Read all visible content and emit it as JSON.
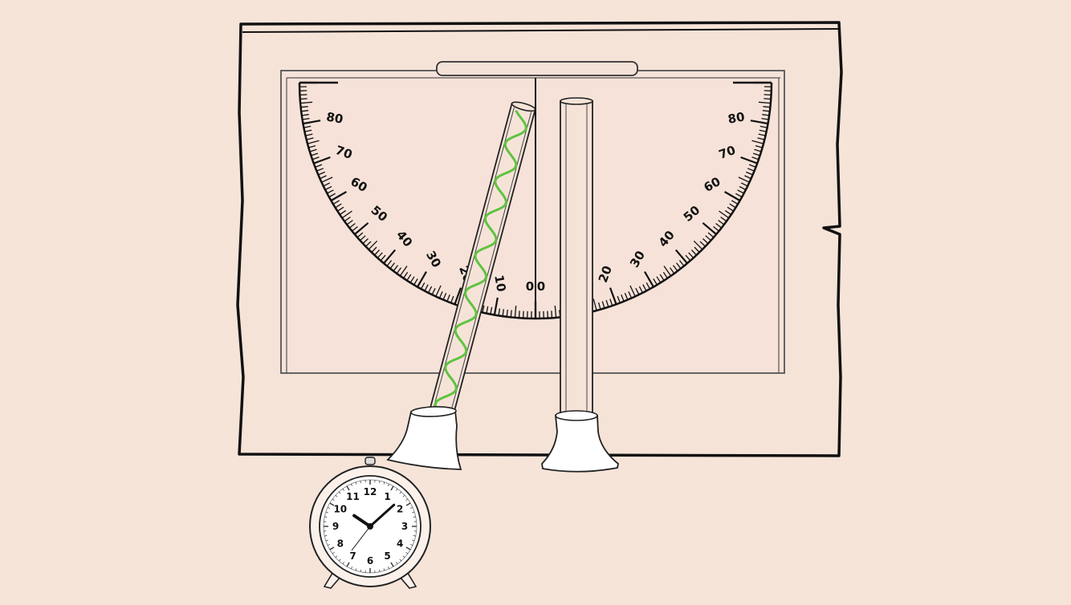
{
  "diagram": {
    "colors": {
      "background": "#f6e4d9",
      "board": "#f6e3d8",
      "outline": "#111111",
      "helix": "#5ec43e"
    },
    "protractor": {
      "range_degrees": [
        0,
        90
      ],
      "label_step_degrees": 10,
      "left_labels": [
        "0",
        "10",
        "20",
        "30",
        "40",
        "50",
        "60",
        "70",
        "80"
      ],
      "right_labels": [
        "0",
        "10",
        "20",
        "30",
        "40",
        "50",
        "60",
        "70",
        "80"
      ]
    },
    "tubes": {
      "rotated_tube_reading_degrees": 15,
      "reference_tube_reading_degrees": 0,
      "rotated_tube_icon": "sample-tube-with-helix",
      "reference_tube_icon": "empty-reference-tube"
    },
    "clock": {
      "icon": "alarm-clock-icon",
      "numerals": [
        "12",
        "1",
        "2",
        "3",
        "4",
        "5",
        "6",
        "7",
        "8",
        "9",
        "10",
        "11"
      ],
      "hour": 10,
      "minute": 8
    }
  }
}
